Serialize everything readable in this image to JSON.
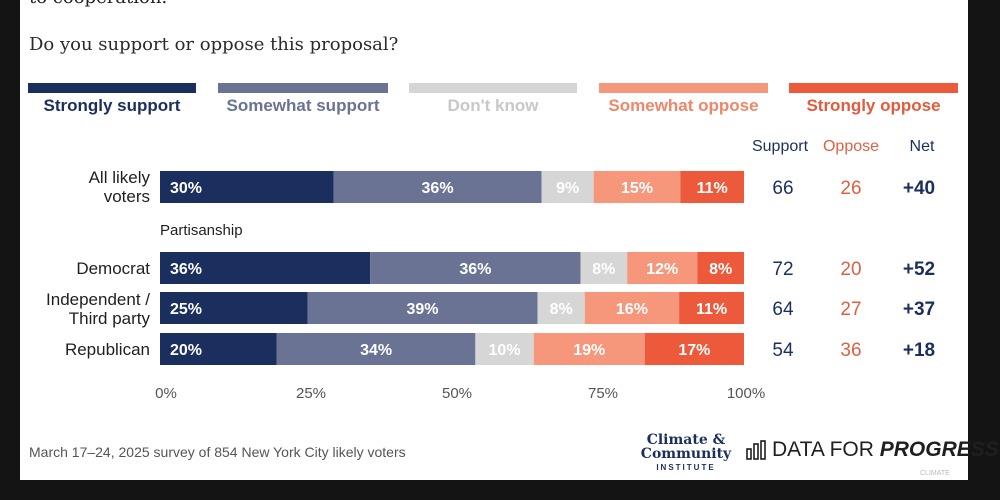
{
  "cut_text": "to cooperation.",
  "question": "Do you support or oppose this proposal?",
  "legend": [
    {
      "label": "Strongly support",
      "color": "#1b2f5e",
      "text_color": "#1b2f5e"
    },
    {
      "label": "Somewhat support",
      "color": "#6b7394",
      "text_color": "#6b7394"
    },
    {
      "label": "Don't know",
      "color": "#d6d6d6",
      "text_color": "#c8c8c8"
    },
    {
      "label": "Somewhat oppose",
      "color": "#f6977c",
      "text_color": "#f0866a"
    },
    {
      "label": "Strongly oppose",
      "color": "#ec5a3b",
      "text_color": "#e55a3a"
    }
  ],
  "columns": {
    "support": "Support",
    "oppose": "Oppose",
    "net": "Net"
  },
  "group_label": "Partisanship",
  "rows": [
    {
      "label_lines": [
        "All likely",
        "voters"
      ],
      "support": "66",
      "oppose": "26",
      "net": "+40"
    },
    {
      "label_lines": [
        "Democrat"
      ],
      "support": "72",
      "oppose": "20",
      "net": "+52"
    },
    {
      "label_lines": [
        "Independent /",
        "Third party"
      ],
      "support": "64",
      "oppose": "27",
      "net": "+37"
    },
    {
      "label_lines": [
        "Republican"
      ],
      "support": "54",
      "oppose": "36",
      "net": "+18"
    }
  ],
  "chart_data": {
    "type": "bar",
    "orientation": "horizontal",
    "stacked": true,
    "categories": [
      "All likely voters",
      "Democrat",
      "Independent / Third party",
      "Republican"
    ],
    "series": [
      {
        "name": "Strongly support",
        "values": [
          30,
          36,
          25,
          20
        ]
      },
      {
        "name": "Somewhat support",
        "values": [
          36,
          36,
          39,
          34
        ]
      },
      {
        "name": "Don't know",
        "values": [
          9,
          8,
          8,
          10
        ]
      },
      {
        "name": "Somewhat oppose",
        "values": [
          15,
          12,
          16,
          19
        ]
      },
      {
        "name": "Strongly oppose",
        "values": [
          11,
          8,
          11,
          17
        ]
      }
    ],
    "x_ticks": [
      "0%",
      "25%",
      "50%",
      "75%",
      "100%"
    ],
    "xlim": [
      0,
      100
    ],
    "legend_position": "top"
  },
  "footer": "March 17–24, 2025 survey of 854 New York City likely voters",
  "logos": {
    "cci_line1": "Climate &",
    "cci_line2": "Community",
    "cci_line3": "INSTITUTE",
    "dfp_prefix": "DATA FOR",
    "dfp_emphasis": "PROGRESS"
  },
  "watermark": "CLIMATE"
}
